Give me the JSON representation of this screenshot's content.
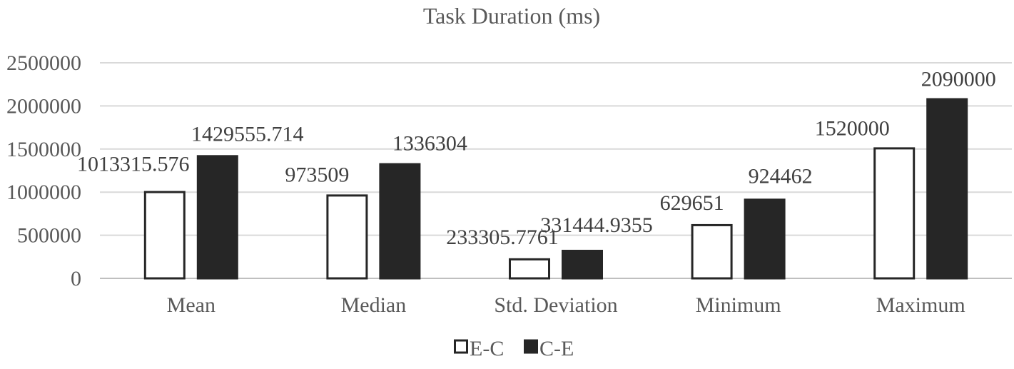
{
  "chart_data": {
    "type": "bar",
    "title": "Task Duration (ms)",
    "xlabel": "",
    "ylabel": "",
    "categories": [
      "Mean",
      "Median",
      "Std. Deviation",
      "Minimum",
      "Maximum"
    ],
    "series": [
      {
        "name": "E-C",
        "values": [
          1013315.576,
          973509,
          233305.7761,
          629651,
          1520000
        ],
        "labels": [
          "1013315.576",
          "973509",
          "233305.7761",
          "629651",
          "1520000"
        ],
        "fill": "#ffffff",
        "stroke": "#262626"
      },
      {
        "name": "C-E",
        "values": [
          1429555.714,
          1336304,
          331444.9355,
          924462,
          2090000
        ],
        "labels": [
          "1429555.714",
          "1336304",
          "331444.9355",
          "924462",
          "2090000"
        ],
        "fill": "#262626",
        "stroke": "#262626"
      }
    ],
    "ylim": [
      0,
      2500000
    ],
    "yticks": [
      0,
      500000,
      1000000,
      1500000,
      2000000,
      2500000
    ],
    "ytick_labels": [
      "0",
      "500000",
      "1000000",
      "1500000",
      "2000000",
      "2500000"
    ],
    "grid": true,
    "legend_position": "bottom"
  }
}
